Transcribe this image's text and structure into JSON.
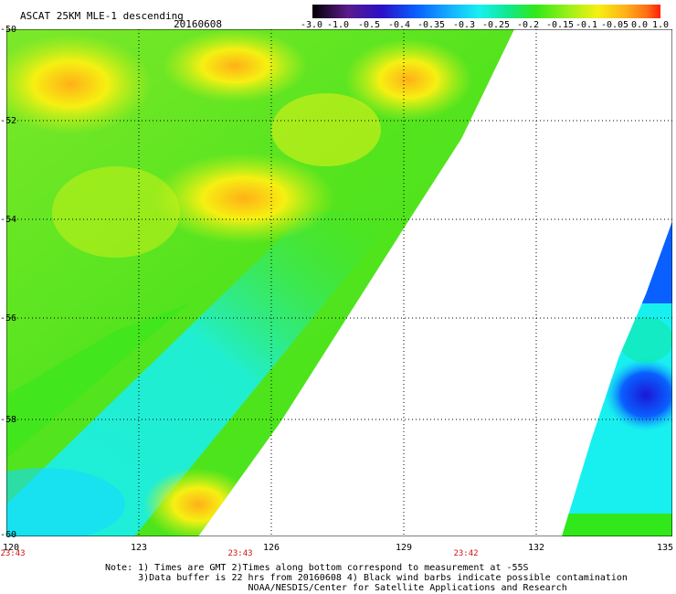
{
  "header": {
    "title": "ASCAT 25KM MLE-1 descending",
    "date": "20160608"
  },
  "colorbar": {
    "tick_labels": [
      "-3.0",
      "-1.0",
      "-0.5",
      "-0.4",
      "-0.35",
      "-0.3",
      "-0.25",
      "-0.2",
      "-0.15",
      "-0.1",
      "-0.05",
      "0.0",
      "1.0"
    ],
    "colors": [
      "#000000",
      "#5a1a8c",
      "#2a10c8",
      "#0a60ff",
      "#14b4ff",
      "#18f0f0",
      "#10e890",
      "#30e81a",
      "#a0f018",
      "#f6f012",
      "#ffb018",
      "#ff7014",
      "#ff1e0a"
    ]
  },
  "map": {
    "lat_labels": [
      "-50",
      "-52",
      "-54",
      "-56",
      "-58",
      "-60"
    ],
    "lon_labels": [
      "120",
      "123",
      "126",
      "129",
      "132",
      "135"
    ],
    "pass_times": [
      "23:43",
      "23:43",
      "23:42"
    ]
  },
  "notes": {
    "line1": "Note: 1) Times are GMT 2)Times along bottom correspond to measurement at -55S",
    "line2": "      3)Data buffer is 22 hrs from 20160608 4) Black wind barbs indicate possible contamination",
    "line3": "                          NOAA/NESDIS/Center for Satellite Applications and Research"
  }
}
